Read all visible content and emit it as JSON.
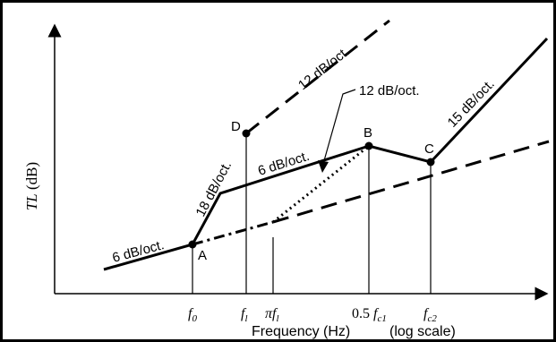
{
  "figure": {
    "y_axis_label": "TL (dB)",
    "x_axis_label": "Frequency (Hz)",
    "x_axis_note": "(log scale)"
  },
  "ticks": {
    "f0": "f",
    "f0_sub": "0",
    "f1": "f",
    "f1_sub": "l",
    "pif1_pi": "π",
    "pif1_f": "f",
    "pif1_sub": "l",
    "half_fc1_num": "0.5",
    "half_fc1_f": "f",
    "half_fc1_sub": "c1",
    "fc2_f": "f",
    "fc2_sub": "c2"
  },
  "points": {
    "A": "A",
    "B": "B",
    "C": "C",
    "D": "D"
  },
  "slope_labels": {
    "low_6": "6 dB/oct.",
    "rise_18": "18 dB/oct.",
    "mid_6": "6 dB/oct.",
    "upper_12": "12 dB/oct.",
    "callout_12": "12 dB/oct.",
    "high_15": "15 dB/oct."
  },
  "colors": {
    "ink": "#000000",
    "background": "#ffffff"
  }
}
